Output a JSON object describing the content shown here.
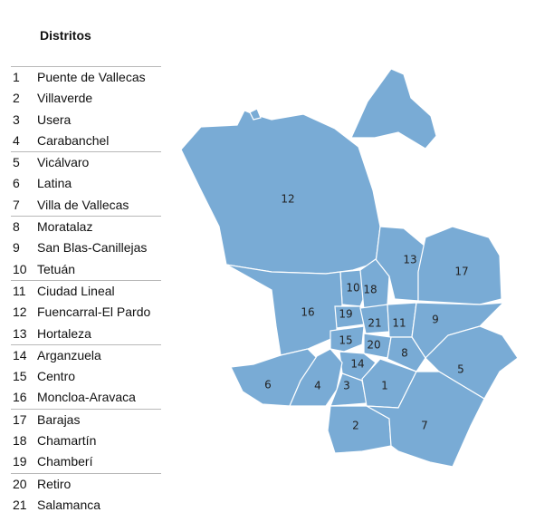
{
  "legend": {
    "title": "Distritos",
    "groups": [
      [
        {
          "num": "1",
          "name": "Puente de Vallecas"
        },
        {
          "num": "2",
          "name": "Villaverde"
        },
        {
          "num": "3",
          "name": "Usera"
        },
        {
          "num": "4",
          "name": "Carabanchel"
        }
      ],
      [
        {
          "num": "5",
          "name": "Vicálvaro"
        },
        {
          "num": "6",
          "name": "Latina"
        },
        {
          "num": "7",
          "name": "Villa de Vallecas"
        }
      ],
      [
        {
          "num": "8",
          "name": "Moratalaz"
        },
        {
          "num": "9",
          "name": "San Blas-Canillejas"
        },
        {
          "num": "10",
          "name": "Tetuán"
        }
      ],
      [
        {
          "num": "11",
          "name": "Ciudad Lineal"
        },
        {
          "num": "12",
          "name": "Fuencarral-El Pardo"
        },
        {
          "num": "13",
          "name": "Hortaleza"
        }
      ],
      [
        {
          "num": "14",
          "name": "Arganzuela"
        },
        {
          "num": "15",
          "name": "Centro"
        },
        {
          "num": "16",
          "name": "Moncloa-Aravaca"
        }
      ],
      [
        {
          "num": "17",
          "name": "Barajas"
        },
        {
          "num": "18",
          "name": "Chamartín"
        },
        {
          "num": "19",
          "name": "Chamberí"
        }
      ],
      [
        {
          "num": "20",
          "name": "Retiro"
        },
        {
          "num": "21",
          "name": "Salamanca"
        }
      ]
    ]
  },
  "map": {
    "fill_color": "#79abd5",
    "border_color": "#ffffff",
    "district_labels": [
      "12",
      "13",
      "17",
      "10",
      "18",
      "16",
      "19",
      "21",
      "11",
      "9",
      "15",
      "20",
      "8",
      "14",
      "6",
      "4",
      "3",
      "1",
      "5",
      "2",
      "7"
    ]
  }
}
